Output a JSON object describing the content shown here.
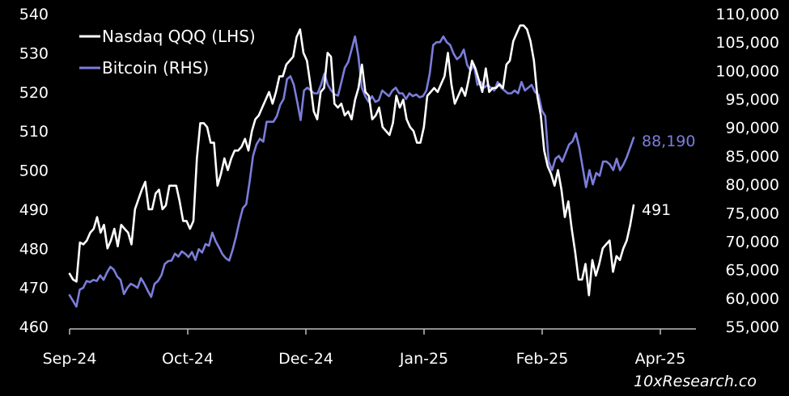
{
  "chart_data": {
    "type": "line",
    "title": "",
    "xlabel": "",
    "ylabel_left": "",
    "ylabel_right": "",
    "x_ticks": [
      "Sep-24",
      "Oct-24",
      "Dec-24",
      "Jan-25",
      "Feb-25",
      "Apr-25"
    ],
    "y_left": {
      "min": 460,
      "max": 540,
      "ticks": [
        "460",
        "470",
        "480",
        "490",
        "500",
        "510",
        "520",
        "530",
        "540"
      ]
    },
    "y_right": {
      "min": 55000,
      "max": 110000,
      "ticks": [
        "55,000",
        "60,000",
        "65,000",
        "70,000",
        "75,000",
        "80,000",
        "85,000",
        "90,000",
        "95,000",
        "100,000",
        "105,000",
        "110,000"
      ]
    },
    "grid": false,
    "legend_position": "top-left",
    "series": [
      {
        "name": "Nasdaq QQQ (LHS)",
        "axis": "left",
        "color": "#ffffff",
        "end_label": "491",
        "values": [
          473.5,
          472,
          471.5,
          481.5,
          481,
          482,
          484,
          485,
          488,
          484,
          486,
          480,
          482,
          485,
          480.5,
          486,
          485,
          484,
          481,
          490,
          492.5,
          495,
          497,
          490,
          490,
          494,
          495,
          490,
          491,
          496,
          496,
          496,
          492,
          487,
          487,
          485,
          487,
          503,
          512,
          512,
          511,
          507,
          507,
          496,
          499,
          503,
          500,
          503,
          505,
          505,
          506,
          508,
          505,
          510,
          513,
          514,
          516,
          518,
          520,
          517,
          520,
          524,
          524,
          527,
          528,
          529,
          534,
          536,
          530,
          528,
          522,
          515,
          513,
          520,
          521,
          530,
          529,
          517,
          516,
          517,
          514,
          515,
          513,
          518,
          521,
          527,
          520,
          519,
          513,
          514,
          516,
          511,
          510,
          509,
          512,
          519,
          516,
          518,
          513,
          511,
          510,
          507,
          507,
          511,
          519,
          520,
          521,
          520,
          522,
          524,
          530,
          522,
          517,
          519,
          521,
          519,
          523,
          528,
          526,
          523,
          520,
          526,
          520,
          521,
          521,
          522,
          521,
          527,
          528,
          533,
          535,
          537,
          537,
          536,
          533,
          528,
          519,
          514,
          505,
          501,
          499,
          496,
          500,
          495,
          488,
          492,
          485,
          479,
          472,
          472,
          476,
          468,
          477,
          473,
          476,
          480,
          481,
          482,
          474,
          478,
          477,
          480,
          482,
          486,
          491
        ]
      },
      {
        "name": "Bitcoin (RHS)",
        "axis": "right",
        "color": "#7b7ddb",
        "end_label": "88,190",
        "values": [
          60500,
          59500,
          58500,
          61500,
          61800,
          63000,
          62800,
          63200,
          63000,
          64000,
          63200,
          64500,
          65500,
          65000,
          63800,
          63200,
          60700,
          61800,
          62500,
          62200,
          61800,
          63500,
          62500,
          61300,
          60200,
          62500,
          63000,
          64000,
          66000,
          66500,
          66600,
          67800,
          67300,
          68200,
          67800,
          67200,
          68100,
          66700,
          68600,
          68000,
          69500,
          69200,
          71500,
          70000,
          68900,
          67700,
          67000,
          66600,
          68500,
          70800,
          73500,
          75800,
          76500,
          80500,
          85000,
          87000,
          88000,
          87500,
          91000,
          91000,
          91000,
          92000,
          94000,
          95000,
          98500,
          99000,
          97500,
          94500,
          91300,
          96500,
          97000,
          96500,
          96000,
          96000,
          97500,
          99500,
          97500,
          96500,
          95800,
          95600,
          98000,
          100500,
          101500,
          103700,
          106000,
          102500,
          97000,
          95500,
          94500,
          95500,
          94500,
          94800,
          96500,
          96000,
          95500,
          96500,
          97000,
          96000,
          96000,
          95000,
          96000,
          95500,
          95800,
          95300,
          95500,
          96500,
          99500,
          104500,
          105000,
          105000,
          106000,
          105000,
          104500,
          103000,
          102000,
          102500,
          103700,
          101000,
          100000,
          101000,
          97500,
          98000,
          97000,
          97500,
          97000,
          96500,
          98000,
          97000,
          96500,
          96000,
          96000,
          96500,
          96000,
          98000,
          96500,
          97000,
          97500,
          96200,
          95800,
          93000,
          92000,
          84000,
          82500,
          84500,
          85000,
          84000,
          85500,
          87000,
          87500,
          89000,
          86500,
          83000,
          79500,
          82500,
          80000,
          82000,
          81500,
          84000,
          84000,
          83500,
          82500,
          84500,
          82500,
          83500,
          84800,
          86500,
          88190
        ]
      }
    ]
  },
  "source": "10xResearch.co"
}
